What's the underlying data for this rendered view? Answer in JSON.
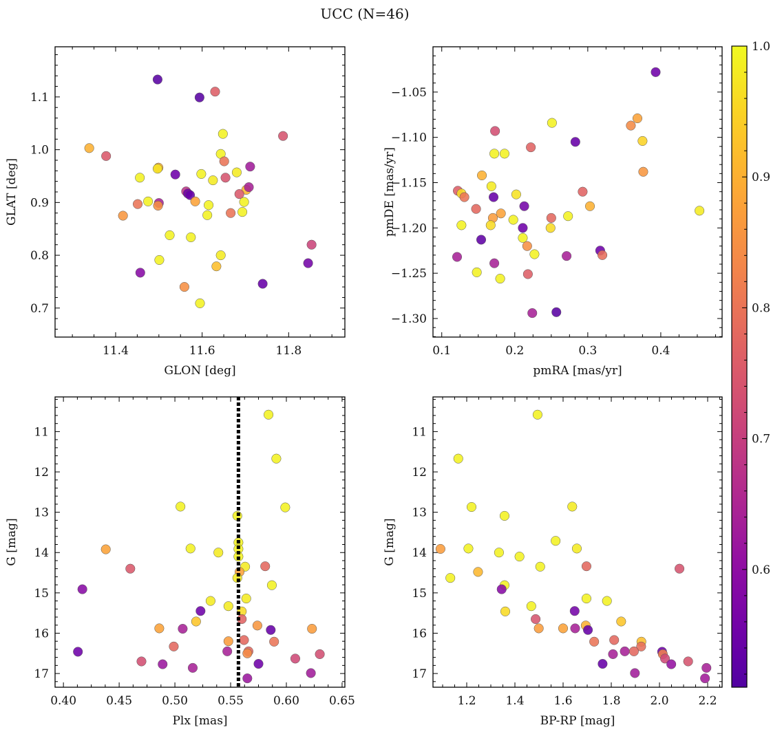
{
  "figure": {
    "suptitle": "UCC (N=46)"
  },
  "colorbar": {
    "colormap": "plasma",
    "range": [
      0.51,
      1.0
    ],
    "ticks": [
      0.6,
      0.7,
      0.8,
      0.9,
      1.0
    ],
    "tick_labels": [
      "0.6",
      "0.7",
      "0.8",
      "0.9",
      "1.0"
    ]
  },
  "chart_data": [
    {
      "id": "glon_glat",
      "type": "scatter",
      "xlabel": "GLON [deg]",
      "ylabel": "GLAT [deg]",
      "xlim": [
        11.26,
        11.93
      ],
      "ylim": [
        0.645,
        1.195
      ],
      "xticks": [
        11.4,
        11.6,
        11.8
      ],
      "xtick_labels": [
        "11.4",
        "11.6",
        "11.8"
      ],
      "yticks": [
        0.7,
        0.8,
        0.9,
        1.0,
        1.1
      ],
      "ytick_labels": [
        "0.7",
        "0.8",
        "0.9",
        "1.0",
        "1.1"
      ],
      "points": [
        {
          "x": 11.497,
          "y": 1.133,
          "c": 0.52
        },
        {
          "x": 11.594,
          "y": 1.099,
          "c": 0.52
        },
        {
          "x": 11.63,
          "y": 1.11,
          "c": 0.76
        },
        {
          "x": 11.339,
          "y": 1.003,
          "c": 0.9
        },
        {
          "x": 11.378,
          "y": 0.988,
          "c": 0.75
        },
        {
          "x": 11.648,
          "y": 1.03,
          "c": 0.99
        },
        {
          "x": 11.787,
          "y": 1.026,
          "c": 0.74
        },
        {
          "x": 11.643,
          "y": 0.992,
          "c": 0.99
        },
        {
          "x": 11.651,
          "y": 0.978,
          "c": 0.8
        },
        {
          "x": 11.499,
          "y": 0.966,
          "c": 0.9
        },
        {
          "x": 11.497,
          "y": 0.964,
          "c": 0.97
        },
        {
          "x": 11.711,
          "y": 0.968,
          "c": 0.63
        },
        {
          "x": 11.68,
          "y": 0.957,
          "c": 0.98
        },
        {
          "x": 11.702,
          "y": 0.924,
          "c": 0.91
        },
        {
          "x": 11.456,
          "y": 0.947,
          "c": 0.99
        },
        {
          "x": 11.538,
          "y": 0.953,
          "c": 0.55
        },
        {
          "x": 11.598,
          "y": 0.954,
          "c": 0.99
        },
        {
          "x": 11.654,
          "y": 0.947,
          "c": 0.74
        },
        {
          "x": 11.625,
          "y": 0.942,
          "c": 0.98
        },
        {
          "x": 11.563,
          "y": 0.921,
          "c": 0.68
        },
        {
          "x": 11.567,
          "y": 0.917,
          "c": 0.55
        },
        {
          "x": 11.572,
          "y": 0.914,
          "c": 0.54
        },
        {
          "x": 11.708,
          "y": 0.929,
          "c": 0.64
        },
        {
          "x": 11.686,
          "y": 0.916,
          "c": 0.75
        },
        {
          "x": 11.475,
          "y": 0.902,
          "c": 0.99
        },
        {
          "x": 11.451,
          "y": 0.897,
          "c": 0.8
        },
        {
          "x": 11.5,
          "y": 0.899,
          "c": 0.64
        },
        {
          "x": 11.498,
          "y": 0.894,
          "c": 0.85
        },
        {
          "x": 11.584,
          "y": 0.902,
          "c": 0.88
        },
        {
          "x": 11.615,
          "y": 0.895,
          "c": 0.99
        },
        {
          "x": 11.697,
          "y": 0.901,
          "c": 0.99
        },
        {
          "x": 11.417,
          "y": 0.875,
          "c": 0.86
        },
        {
          "x": 11.612,
          "y": 0.876,
          "c": 0.99
        },
        {
          "x": 11.666,
          "y": 0.88,
          "c": 0.8
        },
        {
          "x": 11.693,
          "y": 0.882,
          "c": 0.99
        },
        {
          "x": 11.525,
          "y": 0.838,
          "c": 0.99
        },
        {
          "x": 11.574,
          "y": 0.834,
          "c": 0.99
        },
        {
          "x": 11.853,
          "y": 0.82,
          "c": 0.71
        },
        {
          "x": 11.643,
          "y": 0.8,
          "c": 0.98
        },
        {
          "x": 11.501,
          "y": 0.791,
          "c": 0.99
        },
        {
          "x": 11.845,
          "y": 0.785,
          "c": 0.56
        },
        {
          "x": 11.633,
          "y": 0.779,
          "c": 0.92
        },
        {
          "x": 11.457,
          "y": 0.767,
          "c": 0.59
        },
        {
          "x": 11.74,
          "y": 0.746,
          "c": 0.54
        },
        {
          "x": 11.559,
          "y": 0.74,
          "c": 0.85
        },
        {
          "x": 11.595,
          "y": 0.709,
          "c": 0.99
        }
      ]
    },
    {
      "id": "pmra_pmde",
      "type": "scatter",
      "xlabel": "pmRA [mas/yr]",
      "ylabel": "pmDE [mas/yr]",
      "xlim": [
        0.088,
        0.484
      ],
      "ylim": [
        -1.3205,
        -1.0
      ],
      "xticks": [
        0.1,
        0.2,
        0.3,
        0.4
      ],
      "xtick_labels": [
        "0.1",
        "0.2",
        "0.3",
        "0.4"
      ],
      "yticks": [
        -1.3,
        -1.25,
        -1.2,
        -1.15,
        -1.1,
        -1.05
      ],
      "ytick_labels": [
        "−1.30",
        "−1.25",
        "−1.20",
        "−1.15",
        "−1.10",
        "−1.05"
      ],
      "points": [
        {
          "x": 0.393,
          "y": -1.028,
          "c": 0.55
        },
        {
          "x": 0.368,
          "y": -1.079,
          "c": 0.88
        },
        {
          "x": 0.359,
          "y": -1.087,
          "c": 0.84
        },
        {
          "x": 0.251,
          "y": -1.084,
          "c": 0.99
        },
        {
          "x": 0.173,
          "y": -1.093,
          "c": 0.73
        },
        {
          "x": 0.375,
          "y": -1.104,
          "c": 0.95
        },
        {
          "x": 0.283,
          "y": -1.105,
          "c": 0.54
        },
        {
          "x": 0.222,
          "y": -1.111,
          "c": 0.77
        },
        {
          "x": 0.172,
          "y": -1.118,
          "c": 0.99
        },
        {
          "x": 0.186,
          "y": -1.118,
          "c": 0.99
        },
        {
          "x": 0.376,
          "y": -1.138,
          "c": 0.86
        },
        {
          "x": 0.155,
          "y": -1.142,
          "c": 0.9
        },
        {
          "x": 0.168,
          "y": -1.154,
          "c": 0.98
        },
        {
          "x": 0.122,
          "y": -1.159,
          "c": 0.76
        },
        {
          "x": 0.293,
          "y": -1.16,
          "c": 0.77
        },
        {
          "x": 0.127,
          "y": -1.162,
          "c": 0.96
        },
        {
          "x": 0.131,
          "y": -1.166,
          "c": 0.8
        },
        {
          "x": 0.171,
          "y": -1.166,
          "c": 0.54
        },
        {
          "x": 0.202,
          "y": -1.163,
          "c": 0.97
        },
        {
          "x": 0.303,
          "y": -1.176,
          "c": 0.9
        },
        {
          "x": 0.213,
          "y": -1.176,
          "c": 0.56
        },
        {
          "x": 0.147,
          "y": -1.179,
          "c": 0.78
        },
        {
          "x": 0.453,
          "y": -1.181,
          "c": 0.98
        },
        {
          "x": 0.181,
          "y": -1.184,
          "c": 0.88
        },
        {
          "x": 0.273,
          "y": -1.187,
          "c": 0.99
        },
        {
          "x": 0.25,
          "y": -1.189,
          "c": 0.78
        },
        {
          "x": 0.17,
          "y": -1.189,
          "c": 0.87
        },
        {
          "x": 0.198,
          "y": -1.191,
          "c": 0.99
        },
        {
          "x": 0.127,
          "y": -1.197,
          "c": 0.99
        },
        {
          "x": 0.167,
          "y": -1.197,
          "c": 0.96
        },
        {
          "x": 0.211,
          "y": -1.2,
          "c": 0.55
        },
        {
          "x": 0.249,
          "y": -1.2,
          "c": 0.96
        },
        {
          "x": 0.211,
          "y": -1.211,
          "c": 0.99
        },
        {
          "x": 0.154,
          "y": -1.213,
          "c": 0.53
        },
        {
          "x": 0.217,
          "y": -1.22,
          "c": 0.85
        },
        {
          "x": 0.317,
          "y": -1.225,
          "c": 0.55
        },
        {
          "x": 0.227,
          "y": -1.229,
          "c": 0.99
        },
        {
          "x": 0.32,
          "y": -1.23,
          "c": 0.79
        },
        {
          "x": 0.121,
          "y": -1.232,
          "c": 0.64
        },
        {
          "x": 0.271,
          "y": -1.231,
          "c": 0.64
        },
        {
          "x": 0.172,
          "y": -1.239,
          "c": 0.64
        },
        {
          "x": 0.148,
          "y": -1.249,
          "c": 0.99
        },
        {
          "x": 0.218,
          "y": -1.251,
          "c": 0.76
        },
        {
          "x": 0.18,
          "y": -1.256,
          "c": 0.99
        },
        {
          "x": 0.257,
          "y": -1.293,
          "c": 0.52
        },
        {
          "x": 0.224,
          "y": -1.294,
          "c": 0.64
        }
      ]
    },
    {
      "id": "plx_g",
      "type": "scatter",
      "xlabel": "Plx [mas]",
      "ylabel": "G [mag]",
      "xlim": [
        0.3925,
        0.6525
      ],
      "ylim": [
        17.34,
        10.14
      ],
      "y_inverted": true,
      "xticks": [
        0.4,
        0.45,
        0.5,
        0.55,
        0.6,
        0.65
      ],
      "xtick_labels": [
        "0.40",
        "0.45",
        "0.50",
        "0.55",
        "0.60",
        "0.65"
      ],
      "yticks": [
        11,
        12,
        13,
        14,
        15,
        16,
        17
      ],
      "ytick_labels": [
        "11",
        "12",
        "13",
        "14",
        "15",
        "16",
        "17"
      ],
      "vline": {
        "x": 0.557,
        "style": "dotted",
        "color": "#000000"
      },
      "points": [
        {
          "x": 0.584,
          "y": 10.58,
          "c": 0.99
        },
        {
          "x": 0.591,
          "y": 11.67,
          "c": 0.99
        },
        {
          "x": 0.505,
          "y": 12.86,
          "c": 0.99
        },
        {
          "x": 0.599,
          "y": 12.88,
          "c": 0.99
        },
        {
          "x": 0.556,
          "y": 13.09,
          "c": 0.99
        },
        {
          "x": 0.557,
          "y": 13.75,
          "c": 0.99
        },
        {
          "x": 0.438,
          "y": 13.92,
          "c": 0.88
        },
        {
          "x": 0.514,
          "y": 13.9,
          "c": 0.99
        },
        {
          "x": 0.539,
          "y": 14.0,
          "c": 0.98
        },
        {
          "x": 0.557,
          "y": 13.91,
          "c": 0.99
        },
        {
          "x": 0.557,
          "y": 14.1,
          "c": 0.99
        },
        {
          "x": 0.563,
          "y": 14.35,
          "c": 0.98
        },
        {
          "x": 0.46,
          "y": 14.4,
          "c": 0.75
        },
        {
          "x": 0.581,
          "y": 14.34,
          "c": 0.78
        },
        {
          "x": 0.558,
          "y": 14.48,
          "c": 0.88
        },
        {
          "x": 0.556,
          "y": 14.63,
          "c": 0.98
        },
        {
          "x": 0.587,
          "y": 14.81,
          "c": 0.99
        },
        {
          "x": 0.417,
          "y": 14.91,
          "c": 0.59
        },
        {
          "x": 0.564,
          "y": 15.14,
          "c": 0.98
        },
        {
          "x": 0.532,
          "y": 15.2,
          "c": 0.98
        },
        {
          "x": 0.548,
          "y": 15.33,
          "c": 0.98
        },
        {
          "x": 0.523,
          "y": 15.45,
          "c": 0.55
        },
        {
          "x": 0.56,
          "y": 15.46,
          "c": 0.96
        },
        {
          "x": 0.56,
          "y": 15.65,
          "c": 0.77
        },
        {
          "x": 0.519,
          "y": 15.71,
          "c": 0.93
        },
        {
          "x": 0.574,
          "y": 15.81,
          "c": 0.86
        },
        {
          "x": 0.486,
          "y": 15.88,
          "c": 0.88
        },
        {
          "x": 0.507,
          "y": 15.89,
          "c": 0.64
        },
        {
          "x": 0.586,
          "y": 15.92,
          "c": 0.54
        },
        {
          "x": 0.623,
          "y": 15.89,
          "c": 0.87
        },
        {
          "x": 0.562,
          "y": 16.17,
          "c": 0.78
        },
        {
          "x": 0.548,
          "y": 16.2,
          "c": 0.87
        },
        {
          "x": 0.589,
          "y": 16.21,
          "c": 0.8
        },
        {
          "x": 0.499,
          "y": 16.33,
          "c": 0.78
        },
        {
          "x": 0.547,
          "y": 16.45,
          "c": 0.64
        },
        {
          "x": 0.566,
          "y": 16.45,
          "c": 0.78
        },
        {
          "x": 0.565,
          "y": 16.5,
          "c": 0.84
        },
        {
          "x": 0.413,
          "y": 16.46,
          "c": 0.55
        },
        {
          "x": 0.63,
          "y": 16.52,
          "c": 0.73
        },
        {
          "x": 0.608,
          "y": 16.63,
          "c": 0.72
        },
        {
          "x": 0.47,
          "y": 16.7,
          "c": 0.73
        },
        {
          "x": 0.489,
          "y": 16.77,
          "c": 0.62
        },
        {
          "x": 0.575,
          "y": 16.76,
          "c": 0.55
        },
        {
          "x": 0.516,
          "y": 16.86,
          "c": 0.64
        },
        {
          "x": 0.622,
          "y": 16.99,
          "c": 0.63
        },
        {
          "x": 0.565,
          "y": 17.12,
          "c": 0.62
        }
      ]
    },
    {
      "id": "bprp_g",
      "type": "scatter",
      "xlabel": "BP-RP [mag]",
      "ylabel": "G [mag]",
      "xlim": [
        1.06,
        2.26
      ],
      "ylim": [
        17.34,
        10.14
      ],
      "y_inverted": true,
      "xticks": [
        1.2,
        1.4,
        1.6,
        1.8,
        2.0,
        2.2
      ],
      "xtick_labels": [
        "1.2",
        "1.4",
        "1.6",
        "1.8",
        "2.0",
        "2.2"
      ],
      "yticks": [
        11,
        12,
        13,
        14,
        15,
        16,
        17
      ],
      "ytick_labels": [
        "11",
        "12",
        "13",
        "14",
        "15",
        "16",
        "17"
      ],
      "points": [
        {
          "x": 1.494,
          "y": 10.58,
          "c": 0.99
        },
        {
          "x": 1.165,
          "y": 11.67,
          "c": 0.99
        },
        {
          "x": 1.22,
          "y": 12.87,
          "c": 0.99
        },
        {
          "x": 1.638,
          "y": 12.86,
          "c": 0.98
        },
        {
          "x": 1.357,
          "y": 13.09,
          "c": 0.99
        },
        {
          "x": 1.569,
          "y": 13.71,
          "c": 0.99
        },
        {
          "x": 1.091,
          "y": 13.91,
          "c": 0.87
        },
        {
          "x": 1.207,
          "y": 13.9,
          "c": 0.99
        },
        {
          "x": 1.657,
          "y": 13.9,
          "c": 0.98
        },
        {
          "x": 1.334,
          "y": 14.0,
          "c": 0.99
        },
        {
          "x": 1.419,
          "y": 14.1,
          "c": 0.99
        },
        {
          "x": 1.505,
          "y": 14.35,
          "c": 0.99
        },
        {
          "x": 1.697,
          "y": 14.34,
          "c": 0.78
        },
        {
          "x": 2.083,
          "y": 14.4,
          "c": 0.74
        },
        {
          "x": 1.247,
          "y": 14.48,
          "c": 0.91
        },
        {
          "x": 1.132,
          "y": 14.63,
          "c": 0.99
        },
        {
          "x": 1.357,
          "y": 14.81,
          "c": 0.99
        },
        {
          "x": 1.345,
          "y": 14.91,
          "c": 0.59
        },
        {
          "x": 1.697,
          "y": 15.14,
          "c": 0.99
        },
        {
          "x": 1.782,
          "y": 15.2,
          "c": 0.99
        },
        {
          "x": 1.468,
          "y": 15.33,
          "c": 0.99
        },
        {
          "x": 1.36,
          "y": 15.46,
          "c": 0.96
        },
        {
          "x": 1.648,
          "y": 15.45,
          "c": 0.56
        },
        {
          "x": 1.486,
          "y": 15.65,
          "c": 0.74
        },
        {
          "x": 1.841,
          "y": 15.71,
          "c": 0.93
        },
        {
          "x": 1.694,
          "y": 15.81,
          "c": 0.9
        },
        {
          "x": 1.499,
          "y": 15.88,
          "c": 0.87
        },
        {
          "x": 1.6,
          "y": 15.88,
          "c": 0.88
        },
        {
          "x": 1.65,
          "y": 15.88,
          "c": 0.64
        },
        {
          "x": 1.703,
          "y": 15.92,
          "c": 0.54
        },
        {
          "x": 1.729,
          "y": 16.21,
          "c": 0.8
        },
        {
          "x": 1.812,
          "y": 16.17,
          "c": 0.78
        },
        {
          "x": 1.925,
          "y": 16.21,
          "c": 0.92
        },
        {
          "x": 1.924,
          "y": 16.33,
          "c": 0.79
        },
        {
          "x": 1.894,
          "y": 16.45,
          "c": 0.78
        },
        {
          "x": 1.856,
          "y": 16.45,
          "c": 0.64
        },
        {
          "x": 2.011,
          "y": 16.46,
          "c": 0.55
        },
        {
          "x": 2.014,
          "y": 16.52,
          "c": 0.82
        },
        {
          "x": 1.807,
          "y": 16.52,
          "c": 0.64
        },
        {
          "x": 2.023,
          "y": 16.63,
          "c": 0.72
        },
        {
          "x": 2.119,
          "y": 16.7,
          "c": 0.74
        },
        {
          "x": 1.764,
          "y": 16.76,
          "c": 0.54
        },
        {
          "x": 2.049,
          "y": 16.77,
          "c": 0.61
        },
        {
          "x": 2.195,
          "y": 16.86,
          "c": 0.64
        },
        {
          "x": 1.898,
          "y": 16.99,
          "c": 0.63
        },
        {
          "x": 2.189,
          "y": 17.12,
          "c": 0.63
        }
      ]
    }
  ]
}
